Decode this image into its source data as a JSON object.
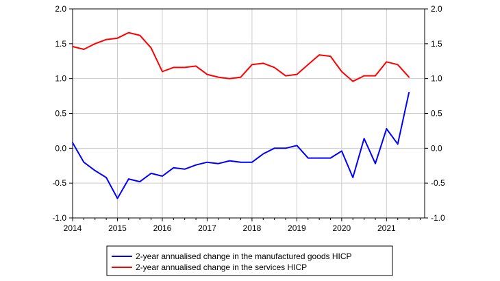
{
  "chart_data": {
    "type": "line",
    "title": "",
    "xlabel": "",
    "ylabel": "",
    "xlim": [
      2014,
      2021.85
    ],
    "ylim": [
      -1.0,
      2.0
    ],
    "y_ticks": [
      -1.0,
      -0.5,
      0.0,
      0.5,
      1.0,
      1.5,
      2.0
    ],
    "y_tick_labels": [
      "-1.0",
      "-0.5",
      "0.0",
      "0.5",
      "1.0",
      "1.5",
      "2.0"
    ],
    "x_ticks": [
      2014,
      2015,
      2016,
      2017,
      2018,
      2019,
      2020,
      2021
    ],
    "x_tick_labels": [
      "2014",
      "2015",
      "2016",
      "2017",
      "2018",
      "2019",
      "2020",
      "2021"
    ],
    "grid": true,
    "dual_y_axis": true,
    "legend_position": "bottom",
    "series": [
      {
        "name": "2-year annualised change in the manufactured goods HICP",
        "color": "#0000ff",
        "x": [
          2014.0,
          2014.25,
          2014.5,
          2014.75,
          2015.0,
          2015.25,
          2015.5,
          2015.75,
          2016.0,
          2016.25,
          2016.5,
          2016.75,
          2017.0,
          2017.25,
          2017.5,
          2017.75,
          2018.0,
          2018.25,
          2018.5,
          2018.75,
          2019.0,
          2019.25,
          2019.5,
          2019.75,
          2020.0,
          2020.25,
          2020.5,
          2020.75,
          2021.0,
          2021.25,
          2021.5
        ],
        "y": [
          0.08,
          -0.2,
          -0.32,
          -0.42,
          -0.72,
          -0.44,
          -0.48,
          -0.36,
          -0.4,
          -0.28,
          -0.3,
          -0.24,
          -0.2,
          -0.22,
          -0.18,
          -0.2,
          -0.2,
          -0.08,
          0.0,
          0.0,
          0.04,
          -0.14,
          -0.14,
          -0.14,
          -0.04,
          -0.42,
          0.14,
          -0.22,
          0.28,
          0.06,
          0.8
        ]
      },
      {
        "name": "2-year annualised change in the services HICP",
        "color": "#ff0000",
        "x": [
          2014.0,
          2014.25,
          2014.5,
          2014.75,
          2015.0,
          2015.25,
          2015.5,
          2015.75,
          2016.0,
          2016.25,
          2016.5,
          2016.75,
          2017.0,
          2017.25,
          2017.5,
          2017.75,
          2018.0,
          2018.25,
          2018.5,
          2018.75,
          2019.0,
          2019.25,
          2019.5,
          2019.75,
          2020.0,
          2020.25,
          2020.5,
          2020.75,
          2021.0,
          2021.25,
          2021.5
        ],
        "y": [
          1.46,
          1.42,
          1.5,
          1.56,
          1.58,
          1.66,
          1.62,
          1.44,
          1.1,
          1.16,
          1.16,
          1.18,
          1.06,
          1.02,
          1.0,
          1.02,
          1.2,
          1.22,
          1.16,
          1.04,
          1.06,
          1.2,
          1.34,
          1.32,
          1.1,
          0.96,
          1.04,
          1.04,
          1.24,
          1.2,
          1.02
        ]
      }
    ]
  }
}
